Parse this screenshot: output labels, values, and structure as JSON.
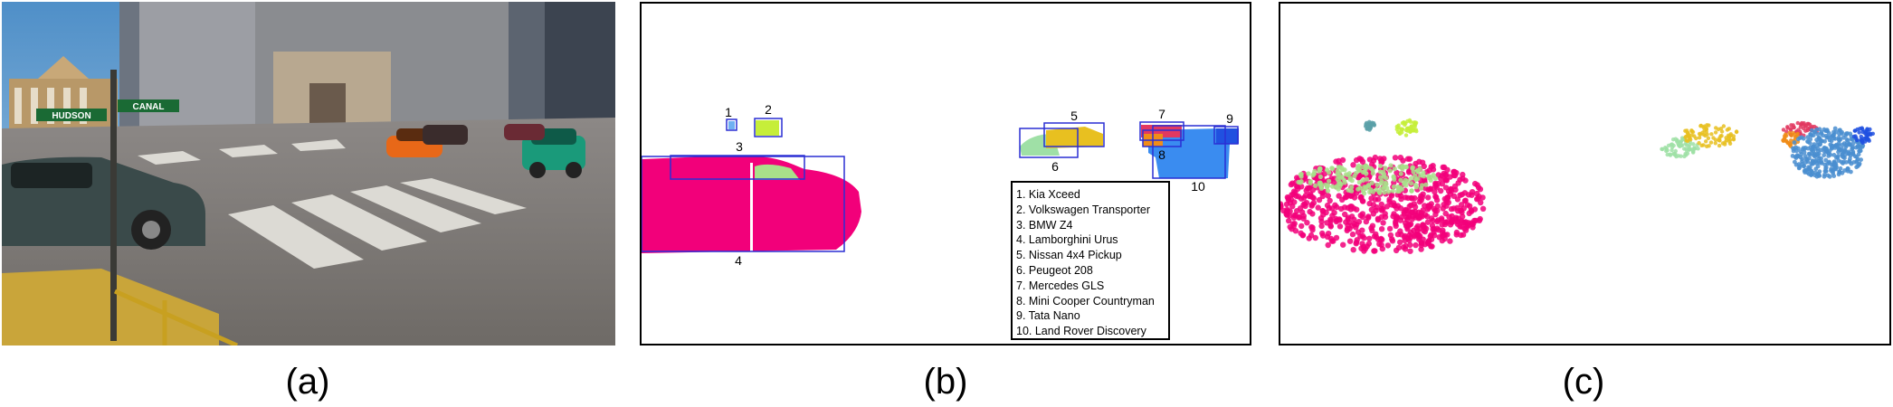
{
  "captions": {
    "a": "(a)",
    "b": "(b)",
    "c": "(c)"
  },
  "scene": {
    "street_sign_left": "HUDSON",
    "street_sign_right": "CANAL"
  },
  "segmentation": {
    "box_labels": [
      "1",
      "2",
      "3",
      "4",
      "5",
      "6",
      "7",
      "8",
      "9",
      "10"
    ],
    "legend": [
      "1.  Kia Xceed",
      "2.  Volkswagen Transporter",
      "3.  BMW Z4",
      "4.  Lamborghini Urus",
      "5.  Nissan 4x4 Pickup",
      "6.  Peugeot 208",
      "7.  Mercedes GLS",
      "8.  Mini Cooper Countryman",
      "9.  Tata Nano",
      "10. Land Rover Discovery"
    ]
  },
  "colors": {
    "box": "#2a2fd4",
    "lamborghini": "#f2007a",
    "bmw": "#a8e08a",
    "transporter": "#c6ee3a",
    "nissan": "#e8c020",
    "peugeot": "#9fe0a6",
    "mercedes": "#e23860",
    "mini": "#f08c18",
    "tata": "#2050e0",
    "landrover": "#3a8cf0",
    "kia": "#6fb0f2"
  }
}
